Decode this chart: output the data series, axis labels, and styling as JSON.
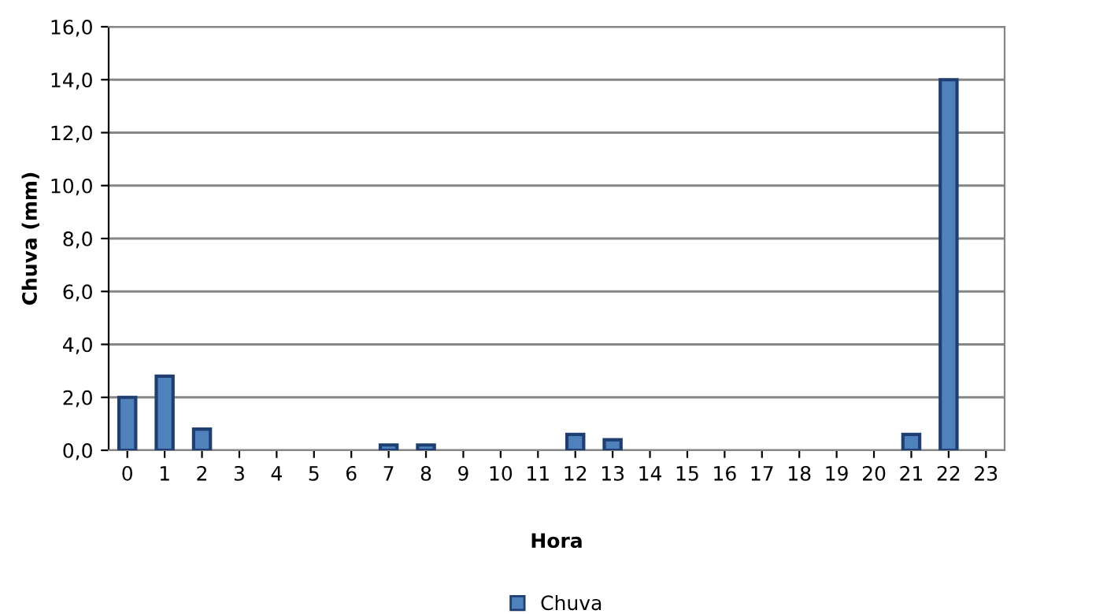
{
  "chart_data": {
    "type": "bar",
    "xlabel": "Hora",
    "ylabel": "Chuva (mm)",
    "categories": [
      "0",
      "1",
      "2",
      "3",
      "4",
      "5",
      "6",
      "7",
      "8",
      "9",
      "10",
      "11",
      "12",
      "13",
      "14",
      "15",
      "16",
      "17",
      "18",
      "19",
      "20",
      "21",
      "22",
      "23"
    ],
    "series": [
      {
        "name": "Chuva",
        "color": "#4f81bd",
        "values": [
          2.0,
          2.8,
          0.8,
          0,
          0,
          0,
          0,
          0.2,
          0.2,
          0,
          0,
          0,
          0.6,
          0.4,
          0,
          0,
          0,
          0,
          0,
          0,
          0,
          0.6,
          14.0,
          0
        ]
      }
    ],
    "ylim": [
      0,
      16
    ],
    "yticks": [
      {
        "value": 0,
        "label": "0,0"
      },
      {
        "value": 2,
        "label": "2,0"
      },
      {
        "value": 4,
        "label": "4,0"
      },
      {
        "value": 6,
        "label": "6,0"
      },
      {
        "value": 8,
        "label": "8,0"
      },
      {
        "value": 10,
        "label": "10,0"
      },
      {
        "value": 12,
        "label": "12,0"
      },
      {
        "value": 14,
        "label": "14,0"
      },
      {
        "value": 16,
        "label": "16,0"
      }
    ],
    "grid": "y",
    "legend": "bottom"
  }
}
